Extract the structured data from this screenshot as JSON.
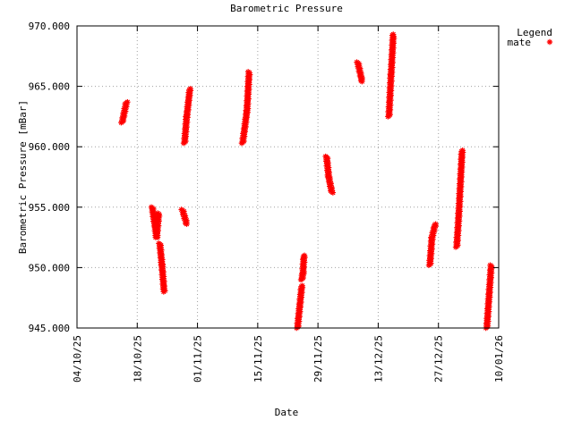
{
  "chart_data": {
    "type": "scatter",
    "title": "Barometric Pressure",
    "xlabel": "Date",
    "ylabel": "Barometric Pressure [mBar]",
    "x_type": "date",
    "x_range": [
      "2025-10-04",
      "2026-01-10"
    ],
    "x_ticks": [
      {
        "date": "2025-10-04",
        "label": "04/10/25"
      },
      {
        "date": "2025-10-18",
        "label": "18/10/25"
      },
      {
        "date": "2025-11-01",
        "label": "01/11/25"
      },
      {
        "date": "2025-11-15",
        "label": "15/11/25"
      },
      {
        "date": "2025-11-29",
        "label": "29/11/25"
      },
      {
        "date": "2025-12-13",
        "label": "13/12/25"
      },
      {
        "date": "2025-12-27",
        "label": "27/12/25"
      },
      {
        "date": "2026-01-10",
        "label": "10/01/26"
      }
    ],
    "ylim": [
      945,
      970
    ],
    "y_ticks": [
      {
        "value": 945,
        "label": "945.000"
      },
      {
        "value": 950,
        "label": "950.000"
      },
      {
        "value": 955,
        "label": "955.000"
      },
      {
        "value": 960,
        "label": "960.000"
      },
      {
        "value": 965,
        "label": "965.000"
      },
      {
        "value": 970,
        "label": "970.000"
      }
    ],
    "grid": true,
    "grid_style": "dotted",
    "legend": {
      "title": "Legend",
      "placement": "top-right outside"
    },
    "series": [
      {
        "name": "mate",
        "color": "#ff0000",
        "marker": "star",
        "segments": [
          {
            "x": [
              "2025-10-14T12:00",
              "2025-10-15T12:00"
            ],
            "y": [
              962,
              963.7
            ]
          },
          {
            "x": [
              "2025-10-21T12:00",
              "2025-10-22T12:00",
              "2025-10-23T00:00"
            ],
            "y": [
              955,
              952.5,
              954.5
            ]
          },
          {
            "x": [
              "2025-10-23T06:00",
              "2025-10-23T18:00",
              "2025-10-24T06:00"
            ],
            "y": [
              952,
              950.2,
              948
            ]
          },
          {
            "x": [
              "2025-10-28T12:00",
              "2025-10-29T12:00"
            ],
            "y": [
              954.8,
              953.6
            ]
          },
          {
            "x": [
              "2025-10-29T00:00",
              "2025-10-29T12:00",
              "2025-10-30T06:00"
            ],
            "y": [
              960.3,
              962.5,
              964.8
            ]
          },
          {
            "x": [
              "2025-11-11T12:00",
              "2025-11-12T12:00",
              "2025-11-13T00:00"
            ],
            "y": [
              960.3,
              963,
              966.2
            ]
          },
          {
            "x": [
              "2025-11-24T06:00",
              "2025-11-25T06:00"
            ],
            "y": [
              945,
              948.5
            ]
          },
          {
            "x": [
              "2025-11-25T06:00",
              "2025-11-25T12:00",
              "2025-11-25T18:00"
            ],
            "y": [
              949,
              949.5,
              951
            ]
          },
          {
            "x": [
              "2025-12-01T00:00",
              "2025-12-01T12:00",
              "2025-12-02T06:00"
            ],
            "y": [
              959.2,
              957.5,
              956.2
            ]
          },
          {
            "x": [
              "2025-12-08T06:00",
              "2025-12-09T06:00"
            ],
            "y": [
              967,
              965.4
            ]
          },
          {
            "x": [
              "2025-12-15T12:00",
              "2025-12-16T00:00",
              "2025-12-16T12:00"
            ],
            "y": [
              962.5,
              966,
              969.3
            ]
          },
          {
            "x": [
              "2025-12-25T00:00",
              "2025-12-25T12:00",
              "2025-12-26T06:00"
            ],
            "y": [
              950.2,
              952.5,
              953.6
            ]
          },
          {
            "x": [
              "2025-12-31T06:00",
              "2025-12-31T18:00",
              "2026-01-01T12:00"
            ],
            "y": [
              951.7,
              954.5,
              959.7
            ]
          },
          {
            "x": [
              "2026-01-07T06:00",
              "2026-01-08T06:00"
            ],
            "y": [
              945,
              950.2
            ]
          }
        ]
      }
    ]
  }
}
